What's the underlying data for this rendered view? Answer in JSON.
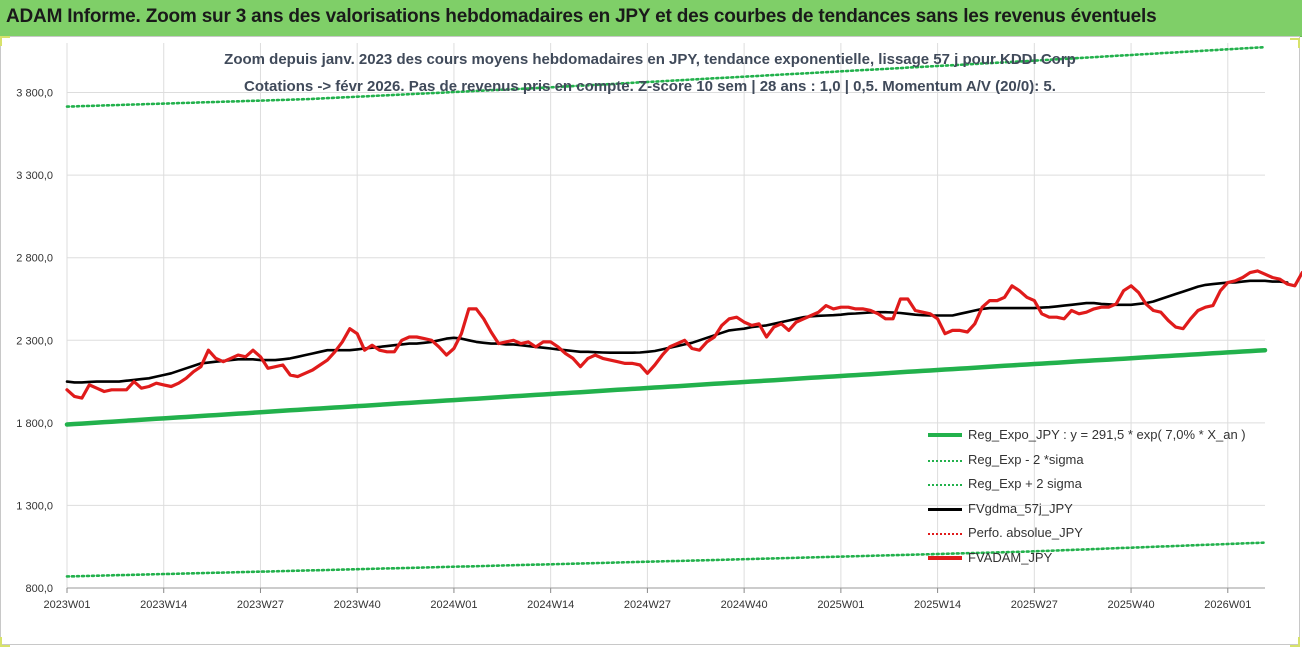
{
  "header": {
    "title": "ADAM Informe. Zoom sur 3 ans des valorisations hebdomadaires en JPY et des courbes de tendances sans les revenus éventuels"
  },
  "colors": {
    "header_bg": "#7fcf68",
    "reg_expo": "#22b14c",
    "fvgdma": "#000000",
    "fvadam": "#e01b1b",
    "perfo": "#e01b1b",
    "grid": "#dddddd"
  },
  "chart_data": {
    "type": "line",
    "title_line1": "Zoom depuis janv. 2023 des cours moyens hebdomadaires en JPY, tendance exponentielle, lissage 57 j pour KDDI Corp",
    "title_line2": "Cotations -> févr 2026.  Pas de revenus pris en compte. Z-score 10 sem | 28 ans : 1,0 | 0,5. Momentum A/V (20/0): 5.",
    "ylim": [
      800,
      4100
    ],
    "y_ticks": [
      800,
      1300,
      1800,
      2300,
      2800,
      3300,
      3800
    ],
    "y_tick_labels": [
      "800,0",
      "1 300,0",
      "1 800,0",
      "2 300,0",
      "2 800,0",
      "3 300,0",
      "3 800,0"
    ],
    "x_range": [
      0,
      161
    ],
    "x_tick_labels": [
      "2023W01",
      "2023W14",
      "2023W27",
      "2023W40",
      "2024W01",
      "2024W14",
      "2024W27",
      "2024W40",
      "2025W01",
      "2025W14",
      "2025W27",
      "2025W40",
      "2026W01"
    ],
    "x_tick_index": [
      0,
      13,
      26,
      39,
      52,
      65,
      78,
      91,
      104,
      117,
      130,
      143,
      156
    ],
    "grid": true,
    "legend_position": "bottom-right",
    "series": [
      {
        "name": "Reg_Expo_JPY : y = 291,5 * exp( 7,0% *   X_an )",
        "key": "reg_expo",
        "style": "solid-thick",
        "start_index": 0,
        "values": [
          1790,
          1882,
          1973,
          2063,
          2153,
          2240
        ]
      },
      {
        "name": "Reg_Exp - 2 *sigma",
        "key": "reg_minus",
        "style": "dotted",
        "start_index": 0,
        "values": [
          870,
          906,
          943,
          981,
          1020,
          1075
        ]
      },
      {
        "name": "Reg_Exp + 2 sigma",
        "key": "reg_plus",
        "style": "dotted",
        "start_index": 0,
        "values": [
          3715,
          3760,
          3830,
          3910,
          3990,
          4075
        ]
      },
      {
        "name": "FVgdma_57j_JPY",
        "key": "fvgdma",
        "style": "solid",
        "start_index": 0,
        "values": [
          2050,
          2045,
          2045,
          2048,
          2050,
          2050,
          2050,
          2050,
          2055,
          2060,
          2065,
          2070,
          2080,
          2090,
          2100,
          2115,
          2130,
          2145,
          2160,
          2165,
          2170,
          2175,
          2180,
          2185,
          2185,
          2185,
          2180,
          2180,
          2180,
          2185,
          2190,
          2200,
          2210,
          2220,
          2230,
          2240,
          2240,
          2240,
          2240,
          2245,
          2250,
          2255,
          2260,
          2265,
          2270,
          2275,
          2280,
          2280,
          2285,
          2290,
          2300,
          2310,
          2315,
          2310,
          2300,
          2290,
          2285,
          2280,
          2280,
          2275,
          2275,
          2270,
          2265,
          2260,
          2255,
          2250,
          2245,
          2240,
          2235,
          2230,
          2230,
          2228,
          2226,
          2225,
          2225,
          2225,
          2225,
          2226,
          2230,
          2235,
          2245,
          2255,
          2265,
          2275,
          2285,
          2300,
          2315,
          2330,
          2345,
          2360,
          2365,
          2370,
          2380,
          2385,
          2390,
          2400,
          2410,
          2420,
          2430,
          2440,
          2445,
          2448,
          2450,
          2452,
          2455,
          2460,
          2462,
          2465,
          2468,
          2470,
          2470,
          2468,
          2465,
          2460,
          2455,
          2452,
          2450,
          2450,
          2450,
          2450,
          2460,
          2470,
          2480,
          2490,
          2495,
          2495,
          2495,
          2495,
          2495,
          2495,
          2495,
          2498,
          2500,
          2505,
          2510,
          2515,
          2520,
          2525,
          2525,
          2520,
          2518,
          2515,
          2515,
          2515,
          2520,
          2525,
          2535,
          2550,
          2565,
          2580,
          2595,
          2610,
          2625,
          2635,
          2640,
          2645,
          2650,
          2650,
          2655,
          2660,
          2660,
          2660,
          2655,
          2655,
          2650
        ]
      },
      {
        "name": "Perfo. absolue_JPY",
        "key": "perfo",
        "style": "dotted",
        "start_index": 0,
        "values": []
      },
      {
        "name": "FVADAM_JPY",
        "key": "fvadam",
        "style": "solid-thick",
        "start_index": 0,
        "values": [
          2000,
          1960,
          1950,
          2030,
          2010,
          1990,
          2000,
          2000,
          2000,
          2050,
          2010,
          2020,
          2040,
          2030,
          2020,
          2040,
          2070,
          2110,
          2140,
          2240,
          2190,
          2170,
          2190,
          2210,
          2200,
          2240,
          2200,
          2130,
          2140,
          2150,
          2090,
          2080,
          2100,
          2120,
          2150,
          2180,
          2230,
          2290,
          2370,
          2340,
          2240,
          2270,
          2240,
          2230,
          2230,
          2300,
          2320,
          2320,
          2310,
          2300,
          2260,
          2210,
          2250,
          2340,
          2490,
          2490,
          2430,
          2350,
          2280,
          2290,
          2300,
          2280,
          2290,
          2260,
          2290,
          2290,
          2260,
          2220,
          2190,
          2140,
          2190,
          2210,
          2190,
          2180,
          2170,
          2160,
          2160,
          2150,
          2100,
          2150,
          2210,
          2260,
          2280,
          2300,
          2250,
          2240,
          2290,
          2320,
          2390,
          2430,
          2440,
          2410,
          2390,
          2400,
          2320,
          2380,
          2400,
          2360,
          2410,
          2430,
          2450,
          2470,
          2510,
          2490,
          2500,
          2500,
          2490,
          2490,
          2480,
          2460,
          2430,
          2430,
          2550,
          2550,
          2480,
          2470,
          2460,
          2430,
          2340,
          2360,
          2360,
          2350,
          2400,
          2500,
          2540,
          2540,
          2560,
          2630,
          2600,
          2560,
          2540,
          2460,
          2440,
          2440,
          2430,
          2480,
          2460,
          2470,
          2490,
          2500,
          2500,
          2520,
          2600,
          2630,
          2590,
          2520,
          2480,
          2470,
          2420,
          2380,
          2370,
          2430,
          2480,
          2500,
          2510,
          2600,
          2650,
          2660,
          2680,
          2710,
          2720,
          2700,
          2680,
          2670,
          2640,
          2630,
          2710,
          2620,
          2670
        ]
      }
    ]
  }
}
